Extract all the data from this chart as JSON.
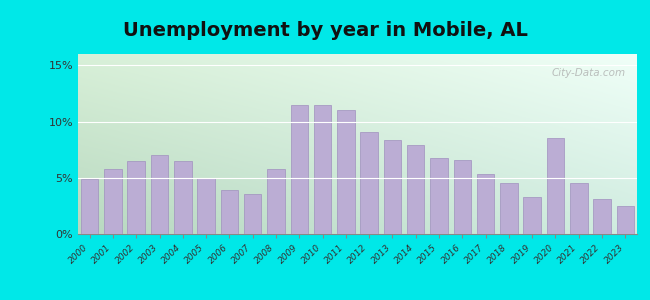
{
  "title": "Unemployment by year in Mobile, AL",
  "years": [
    2000,
    2001,
    2002,
    2003,
    2004,
    2005,
    2006,
    2007,
    2008,
    2009,
    2010,
    2011,
    2012,
    2013,
    2014,
    2015,
    2016,
    2017,
    2018,
    2019,
    2020,
    2021,
    2022,
    2023
  ],
  "values": [
    4.9,
    5.8,
    6.5,
    7.0,
    6.5,
    5.0,
    3.9,
    3.6,
    5.8,
    11.5,
    11.5,
    11.0,
    9.1,
    8.4,
    7.9,
    6.8,
    6.6,
    5.3,
    4.5,
    3.3,
    8.5,
    4.5,
    3.1,
    2.5
  ],
  "bar_color": "#bbadd4",
  "bar_edge_color": "#a090be",
  "yticks": [
    0,
    5,
    10,
    15
  ],
  "ytick_labels": [
    "0%",
    "5%",
    "10%",
    "15%"
  ],
  "ylim": [
    0,
    16
  ],
  "bg_color_topleft": "#c8e8c8",
  "bg_color_topright": "#e8f8f0",
  "bg_color_bottom": "#d0ead8",
  "outer_background": "#00e8e8",
  "title_fontsize": 14,
  "watermark": "City-Data.com",
  "grid_color": "#ffffff"
}
